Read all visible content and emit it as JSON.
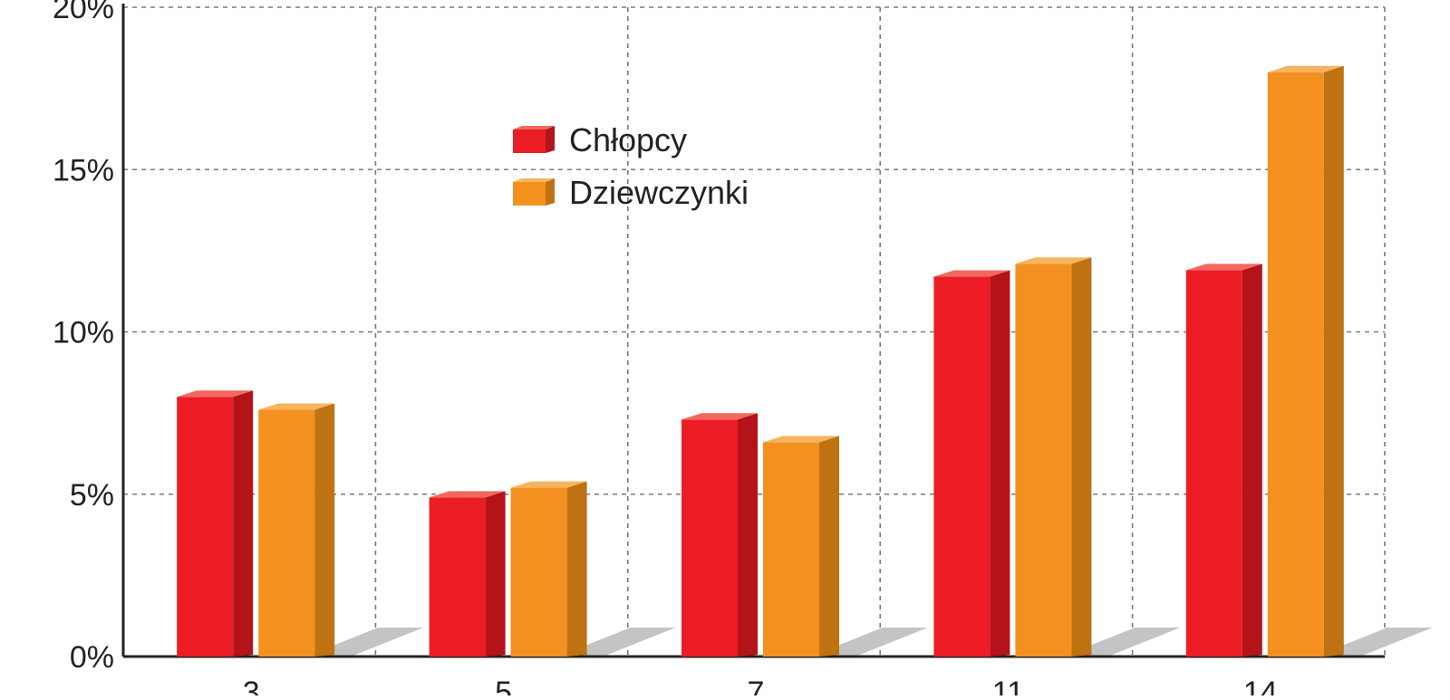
{
  "chart_data": {
    "type": "bar",
    "style": "3d-column",
    "categories": [
      "3",
      "5",
      "7",
      "11",
      "14"
    ],
    "series": [
      {
        "name": "Chłopcy",
        "values": [
          8.0,
          4.9,
          7.3,
          11.7,
          11.9
        ],
        "color": "#ec1c24",
        "side_color": "#b5131a",
        "top_color": "#f2685f"
      },
      {
        "name": "Dziewczynki",
        "values": [
          7.6,
          5.2,
          6.6,
          12.1,
          18.0
        ],
        "color": "#f39020",
        "side_color": "#bf7212",
        "top_color": "#f7b45e"
      }
    ],
    "y_ticks": [
      "0%",
      "5%",
      "10%",
      "15%",
      "20%"
    ],
    "ylim": [
      0,
      20
    ],
    "title": "",
    "xlabel": "",
    "ylabel": "",
    "grid": true,
    "grid_style": "dashed",
    "legend_position": "top-center",
    "shadow_color": "#c4c4c4",
    "axis_color": "#222222",
    "grid_color": "#7a7a7a"
  }
}
